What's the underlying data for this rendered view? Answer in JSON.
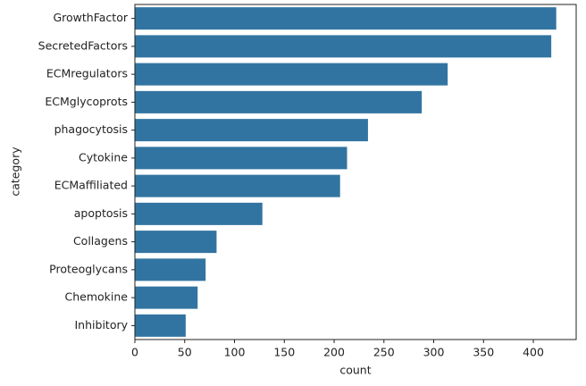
{
  "chart_data": {
    "type": "barh",
    "categories": [
      "GrowthFactor",
      "SecretedFactors",
      "ECMregulators",
      "ECMglycoprots",
      "phagocytosis",
      "Cytokine",
      "ECMaffiliated",
      "apoptosis",
      "Collagens",
      "Proteoglycans",
      "Chemokine",
      "Inhibitory"
    ],
    "values": [
      423,
      418,
      314,
      288,
      234,
      213,
      206,
      128,
      82,
      71,
      63,
      51
    ],
    "color": "#3274a1",
    "xlabel": "count",
    "ylabel": "category",
    "xlim": [
      0,
      443
    ],
    "xticks": [
      0,
      50,
      100,
      150,
      200,
      250,
      300,
      350,
      400
    ],
    "grid": false
  }
}
